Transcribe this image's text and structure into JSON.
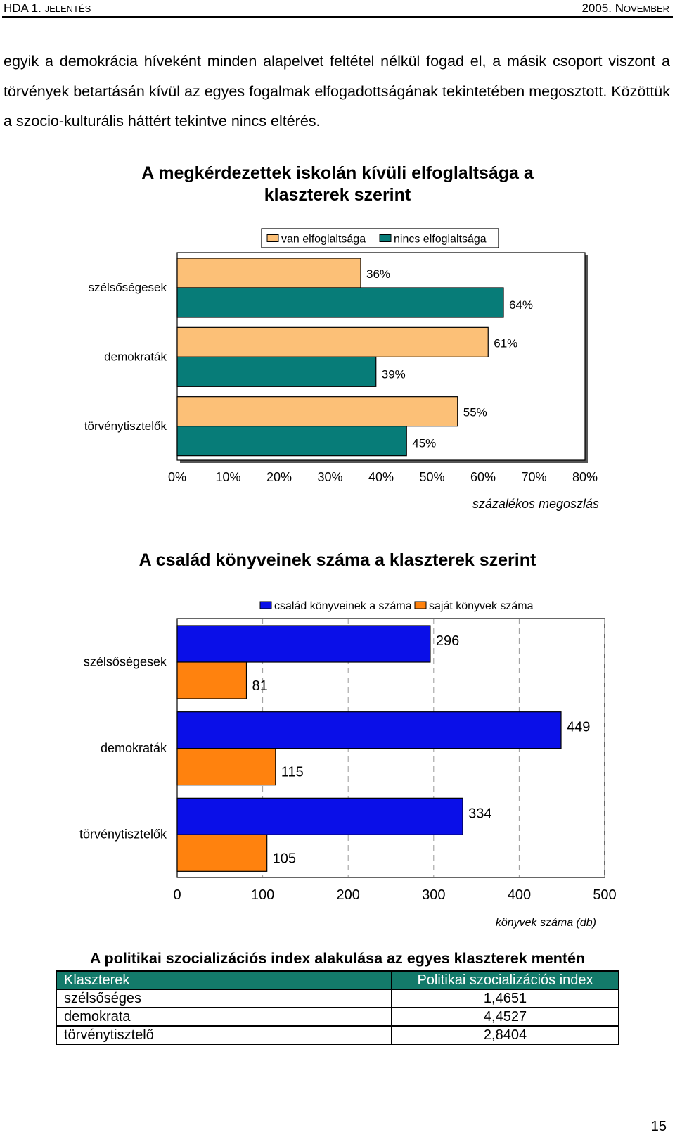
{
  "header": {
    "left_main": "HDA 1.",
    "left_caps": "JELENTÉS",
    "right_main": "2005. N",
    "right_caps": "OVEMBER"
  },
  "paragraph": "egyik a demokrácia híveként minden alapelvet feltétel nélkül fogad el, a másik csoport viszont a törvények betartásán kívül az egyes fogalmak elfogadottságának tekintetében megosztott. Közöttük a szocio-kulturális háttért tekintve nincs eltérés.",
  "chart_data": [
    {
      "type": "bar",
      "orientation": "horizontal",
      "title": "A megkérdezettek iskolán kívüli elfoglaltsága a klaszterek szerint",
      "title_line1": "A megkérdezettek iskolán kívüli elfoglaltsága a",
      "title_line2": "klaszterek szerint",
      "categories": [
        "szélsőségesek",
        "demokraták",
        "törvénytisztelők"
      ],
      "series": [
        {
          "name": "van elfoglaltsága",
          "color": "#fcc077",
          "values": [
            36,
            61,
            55
          ],
          "labels": [
            "36%",
            "61%",
            "55%"
          ]
        },
        {
          "name": "nincs elfoglaltsága",
          "color": "#077c78",
          "values": [
            64,
            39,
            45
          ],
          "labels": [
            "64%",
            "39%",
            "45%"
          ]
        }
      ],
      "xlim": [
        0,
        80
      ],
      "xticks": [
        "0%",
        "10%",
        "20%",
        "30%",
        "40%",
        "50%",
        "60%",
        "70%",
        "80%"
      ],
      "xlabel": "százalékos megoszlás",
      "grid": false,
      "legend": "top"
    },
    {
      "type": "bar",
      "orientation": "horizontal",
      "title": "A család könyveinek száma a klaszterek szerint",
      "categories": [
        "szélsőségesek",
        "demokraták",
        "törvénytisztelők"
      ],
      "series": [
        {
          "name": "család könyveinek a száma",
          "color": "#0a0fe8",
          "values": [
            296,
            449,
            334
          ],
          "labels": [
            "296",
            "449",
            "334"
          ]
        },
        {
          "name": "saját könyvek száma",
          "color": "#ff820e",
          "values": [
            81,
            115,
            105
          ],
          "labels": [
            "81",
            "115",
            "105"
          ]
        }
      ],
      "xlim": [
        0,
        500
      ],
      "xticks": [
        "0",
        "100",
        "200",
        "300",
        "400",
        "500"
      ],
      "xlabel": "könyvek száma (db)",
      "grid": true,
      "legend": "top"
    }
  ],
  "table": {
    "title": "A politikai szocializációs index alakulása az egyes klaszterek mentén",
    "headers": [
      "Klaszterek",
      "Politikai szocializációs index"
    ],
    "rows": [
      [
        "szélsőséges",
        "1,4651"
      ],
      [
        "demokrata",
        "4,4527"
      ],
      [
        "törvénytisztelő",
        "2,8404"
      ]
    ]
  },
  "page_number": "15"
}
